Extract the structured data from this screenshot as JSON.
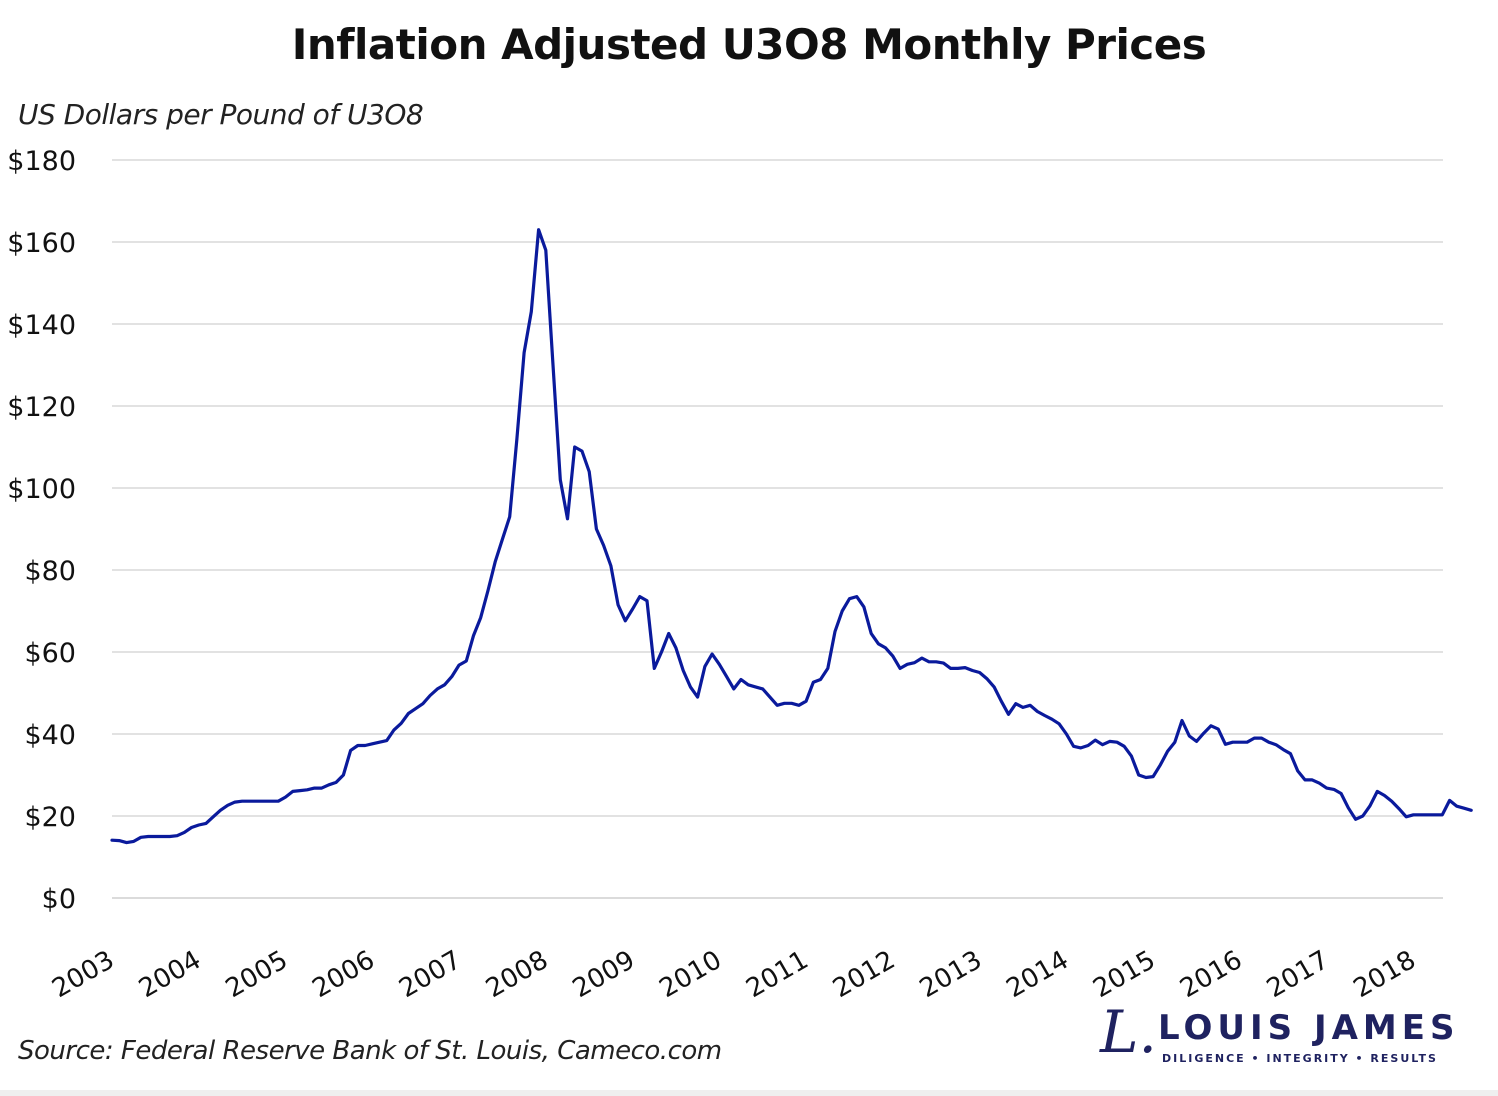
{
  "header": {
    "title": "Inflation Adjusted U3O8 Monthly Prices",
    "y_axis_label": "US Dollars per Pound of U3O8"
  },
  "footer": {
    "source": "Source: Federal Reserve Bank of St. Louis, Cameco.com"
  },
  "logo": {
    "script_letter": "L.",
    "name": "LOUIS JAMES",
    "tagline": "DILIGENCE  •  INTEGRITY  •  RESULTS",
    "color": "#1f2260"
  },
  "colors": {
    "line": "#0a1a9c",
    "grid": "#d9d9d9",
    "text": "#111111"
  },
  "chart_data": {
    "type": "line",
    "title": "Inflation Adjusted U3O8 Monthly Prices",
    "xlabel": "",
    "ylabel": "US Dollars per Pound of U3O8",
    "ylim": [
      0,
      180
    ],
    "yticks": [
      0,
      20,
      40,
      60,
      80,
      100,
      120,
      140,
      160,
      180
    ],
    "ytick_labels": [
      "$0",
      "$20",
      "$40",
      "$60",
      "$80",
      "$100",
      "$120",
      "$140",
      "$160",
      "$180"
    ],
    "xtick_labels": [
      "2003",
      "2004",
      "2005",
      "2006",
      "2007",
      "2008",
      "2009",
      "2010",
      "2011",
      "2012",
      "2013",
      "2014",
      "2015",
      "2016",
      "2017",
      "2018"
    ],
    "x_start": "2003-01",
    "x_frequency": "monthly",
    "grid": "horizontal",
    "legend": "none",
    "series": [
      {
        "name": "U3O8 inflation-adjusted price",
        "values": [
          14.1,
          14.0,
          13.5,
          13.8,
          14.8,
          15.0,
          15.0,
          15.0,
          15.0,
          15.2,
          16.0,
          17.2,
          17.8,
          18.2,
          19.8,
          21.4,
          22.6,
          23.4,
          23.6,
          23.6,
          23.6,
          23.6,
          23.6,
          23.6,
          24.6,
          26.0,
          26.2,
          26.4,
          26.8,
          26.8,
          27.6,
          28.2,
          30.0,
          36.0,
          37.2,
          37.2,
          37.6,
          38.0,
          38.4,
          41.0,
          42.6,
          45.0,
          46.2,
          47.4,
          49.4,
          51.0,
          52.0,
          54.0,
          56.8,
          57.8,
          64.0,
          68.4,
          75.0,
          82.0,
          87.5,
          93.0,
          112.0,
          133.0,
          143.0,
          163.0,
          158.0,
          130.0,
          102.0,
          92.5,
          110.0,
          109.0,
          104.0,
          90.0,
          86.0,
          81.0,
          71.5,
          67.6,
          70.5,
          73.5,
          72.5,
          56.0,
          60.0,
          64.5,
          61.0,
          55.5,
          51.5,
          49.0,
          56.5,
          59.5,
          57.0,
          54.0,
          51.0,
          53.3,
          52.0,
          51.5,
          51.0,
          49.0,
          47.0,
          47.5,
          47.5,
          47.0,
          48.0,
          52.6,
          53.3,
          56.0,
          65.0,
          70.0,
          73.0,
          73.5,
          71.0,
          64.5,
          62.0,
          61.0,
          59.0,
          56.0,
          57.0,
          57.4,
          58.5,
          57.6,
          57.6,
          57.3,
          56.0,
          56.0,
          56.2,
          55.5,
          55.0,
          53.5,
          51.5,
          48.0,
          44.8,
          47.4,
          46.5,
          47.0,
          45.5,
          44.5,
          43.6,
          42.5,
          40.0,
          37.0,
          36.6,
          37.2,
          38.5,
          37.4,
          38.2,
          38.0,
          37.0,
          34.6,
          30.0,
          29.4,
          29.6,
          32.5,
          35.8,
          38.0,
          43.3,
          39.5,
          38.2,
          40.2,
          42.0,
          41.2,
          37.5,
          38.0,
          38.0,
          38.0,
          39.0,
          39.0,
          38.0,
          37.4,
          36.2,
          35.2,
          31.0,
          28.8,
          28.8,
          28.0,
          26.8,
          26.5,
          25.5,
          22.0,
          19.2,
          20.0,
          22.5,
          26.0,
          25.0,
          23.6,
          21.8,
          19.8,
          20.3,
          20.3,
          20.3,
          20.3,
          20.3,
          23.8,
          22.4,
          21.9,
          21.4
        ]
      }
    ]
  }
}
